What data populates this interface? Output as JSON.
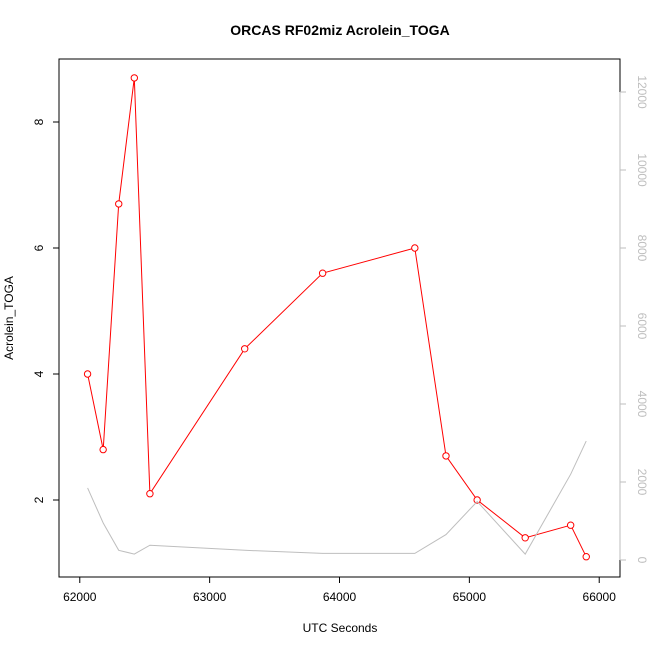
{
  "chart_data": {
    "type": "line",
    "title": "ORCAS RF02miz Acrolein_TOGA",
    "xlabel": "UTC Seconds",
    "ylabel": "Acrolein_TOGA",
    "xlim": [
      62000,
      66000
    ],
    "ylim": [
      1,
      9
    ],
    "y2lim": [
      0,
      12000
    ],
    "x_ticks": [
      62000,
      63000,
      64000,
      65000,
      66000
    ],
    "y_ticks": [
      2,
      4,
      6,
      8
    ],
    "y2_ticks": [
      0,
      2000,
      4000,
      6000,
      8000,
      10000,
      12000
    ],
    "grid": false,
    "series": [
      {
        "axis": "left",
        "color": "#ff0000",
        "marker": "open-circle",
        "x": [
          62060,
          62180,
          62300,
          62420,
          62540,
          63270,
          63870,
          64580,
          64820,
          65060,
          65430,
          65780,
          65900
        ],
        "y": [
          4.0,
          2.8,
          6.7,
          8.7,
          2.1,
          4.4,
          5.6,
          6.0,
          2.7,
          2.0,
          1.4,
          1.6,
          1.1
        ]
      },
      {
        "axis": "right",
        "color": "#bebebe",
        "marker": "none",
        "x": [
          62060,
          62180,
          62300,
          62420,
          62540,
          63270,
          63870,
          64580,
          64820,
          65060,
          65430,
          65780,
          65900
        ],
        "y": [
          1850,
          950,
          250,
          150,
          380,
          250,
          170,
          170,
          650,
          1500,
          150,
          2200,
          3050
        ]
      }
    ]
  }
}
